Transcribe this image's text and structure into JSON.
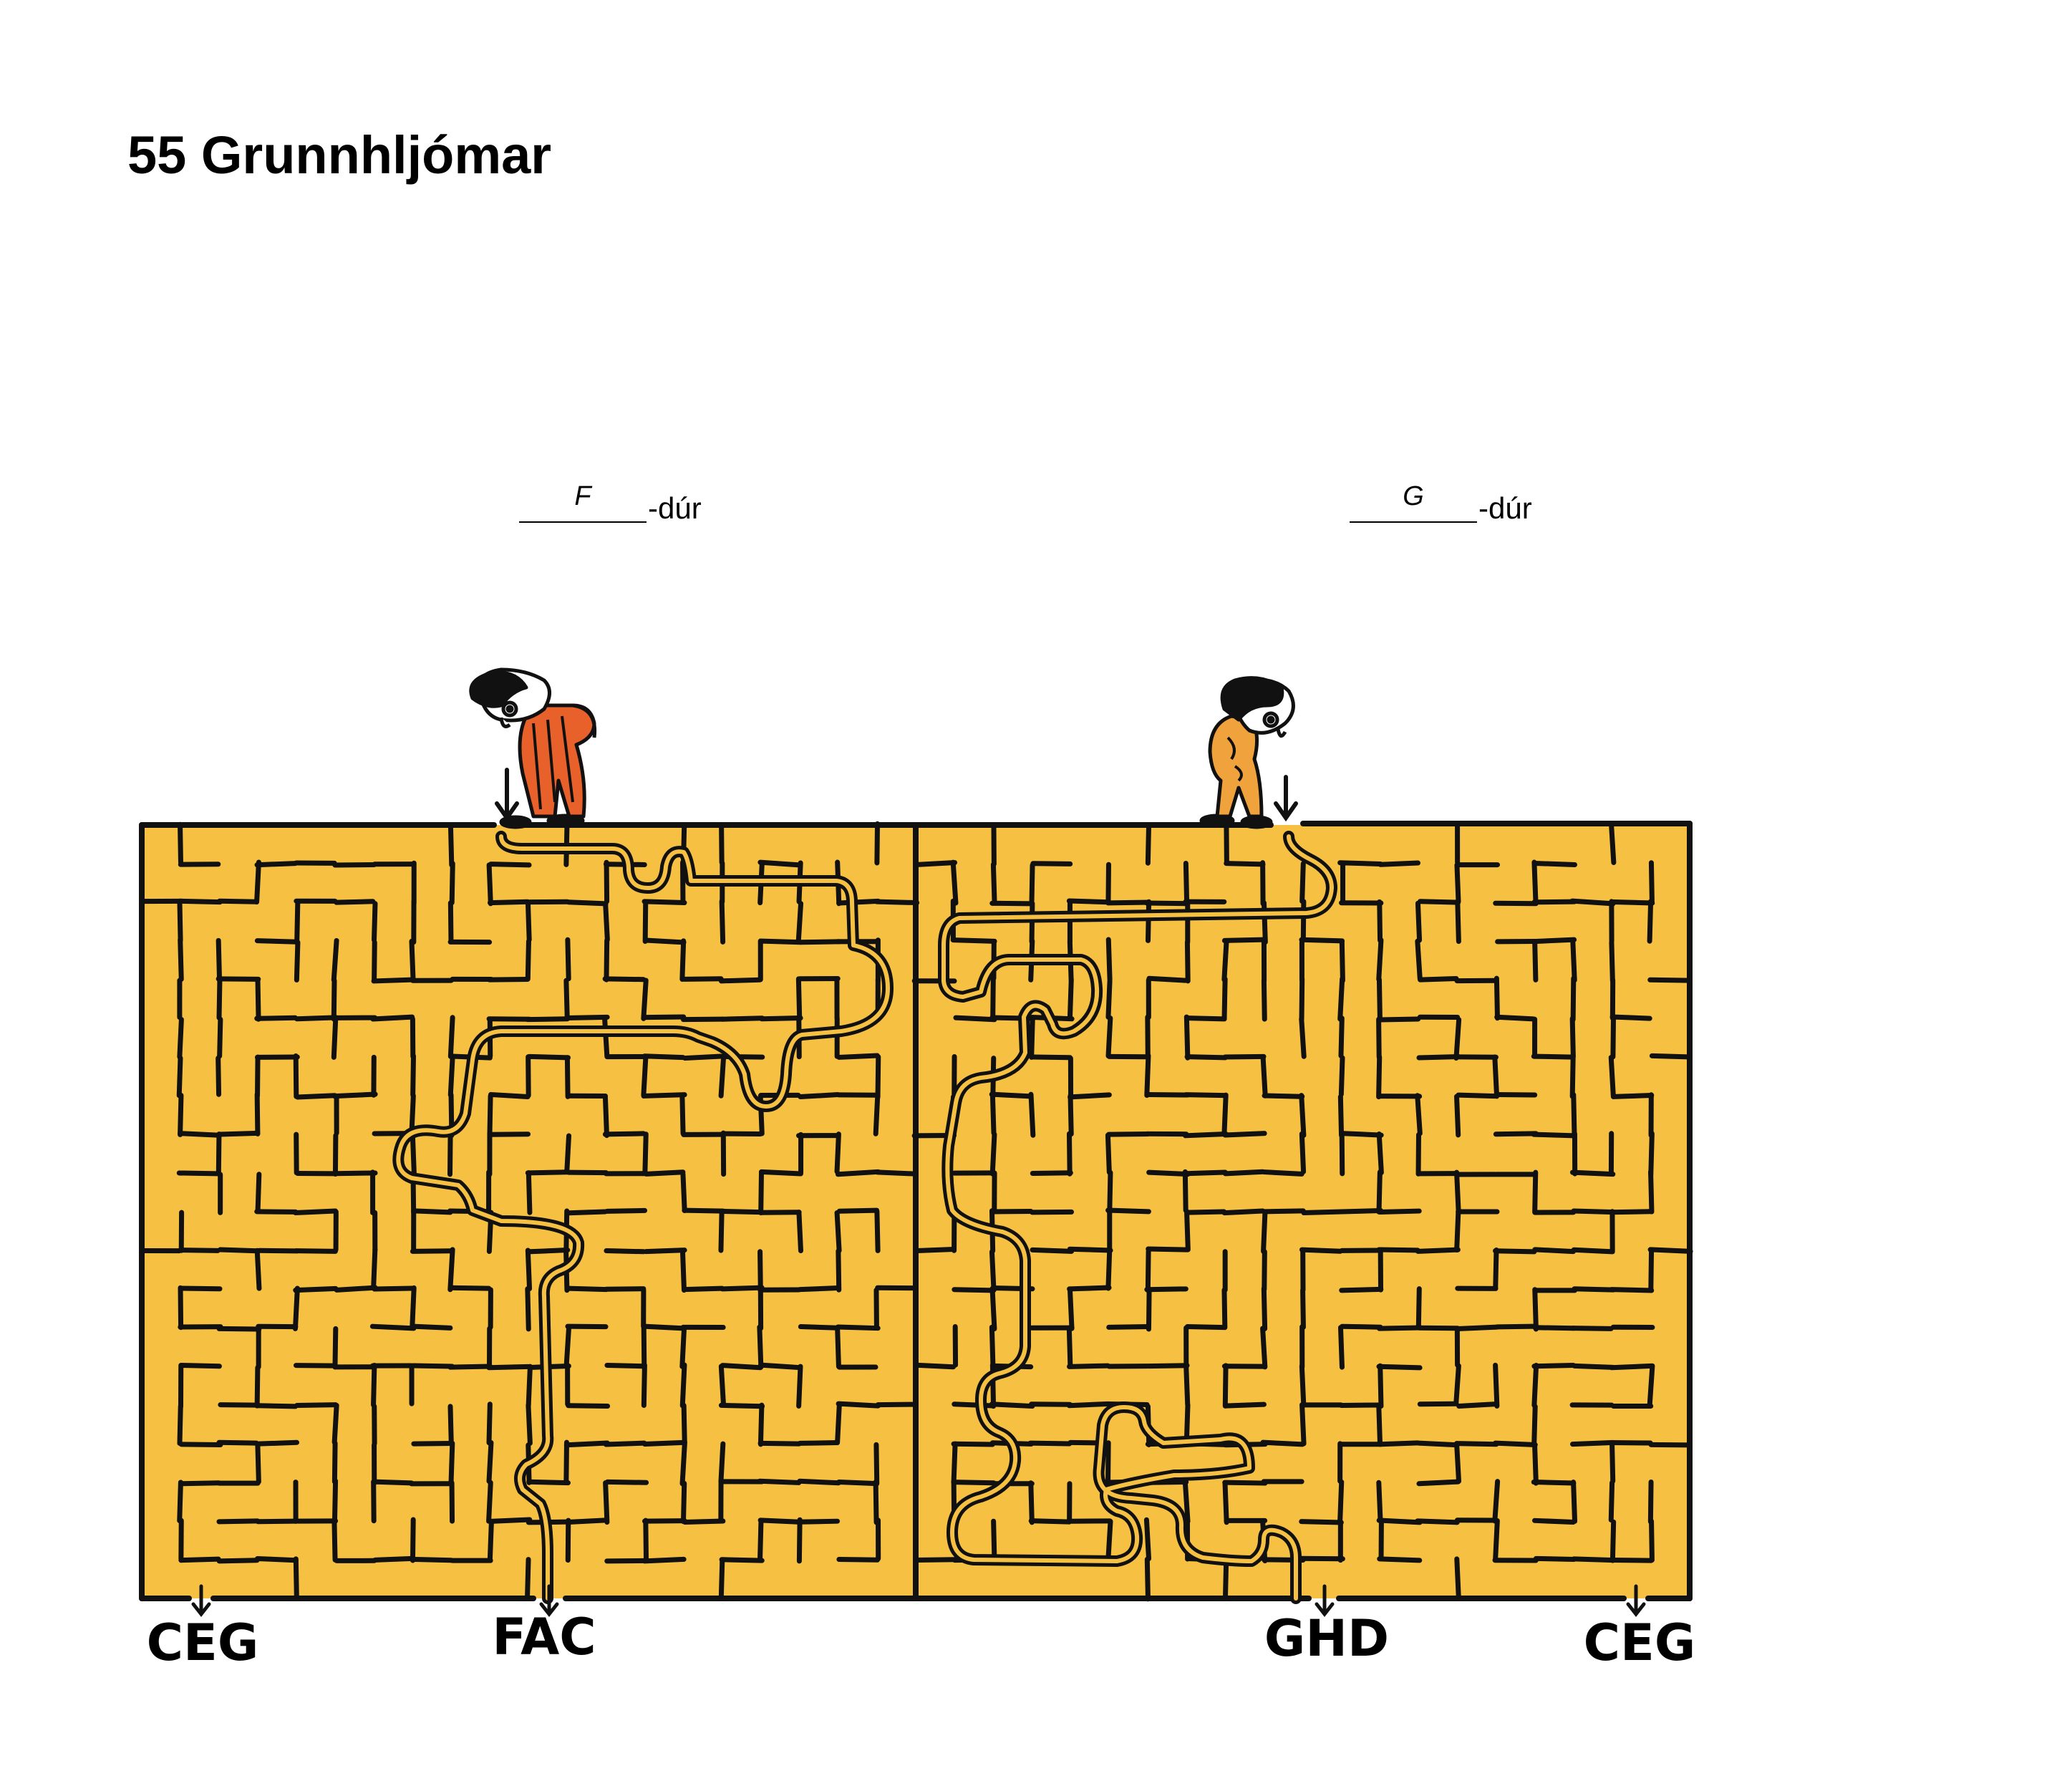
{
  "title": "55 Grunnhljómar",
  "chords": [
    {
      "answer": "F",
      "suffix": "-dúr"
    },
    {
      "answer": "G",
      "suffix": "-dúr"
    }
  ],
  "exits": [
    "CEG",
    "FAC",
    "GHD",
    "CEG"
  ],
  "colors": {
    "maze_fill": "#f6c143",
    "wall": "#111111",
    "character_left": "#e8602a",
    "character_right": "#f0a23c"
  },
  "icons": [
    "down-arrow-icon",
    "character-figure-icon"
  ]
}
